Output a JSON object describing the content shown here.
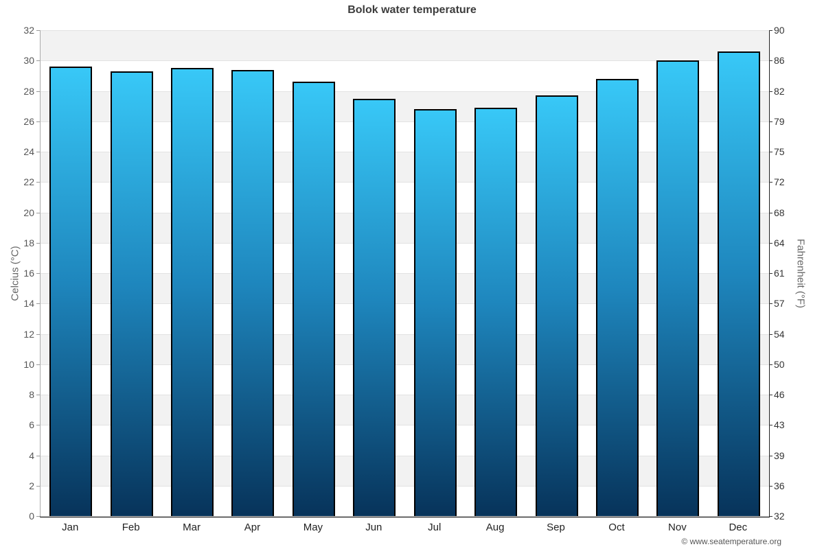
{
  "chart_data": {
    "type": "bar",
    "title": "Bolok water temperature",
    "categories": [
      "Jan",
      "Feb",
      "Mar",
      "Apr",
      "May",
      "Jun",
      "Jul",
      "Aug",
      "Sep",
      "Oct",
      "Nov",
      "Dec"
    ],
    "values": [
      29.6,
      29.3,
      29.5,
      29.4,
      28.6,
      27.5,
      26.8,
      26.9,
      27.7,
      28.8,
      30.0,
      30.6
    ],
    "unit": "°C",
    "ylabel_left": "Celcius (°C)",
    "ylabel_right": "Fahrenheit (°F)",
    "ylim_left": [
      0,
      32
    ],
    "yticks_left": [
      32,
      30,
      28,
      26,
      24,
      22,
      20,
      18,
      16,
      14,
      12,
      10,
      8,
      6,
      4,
      2,
      0
    ],
    "yticks_right_labels": [
      "90",
      "86",
      "82",
      "79",
      "75",
      "72",
      "68",
      "64",
      "61",
      "57",
      "54",
      "50",
      "46",
      "43",
      "39",
      "36",
      "32"
    ],
    "legend": "none",
    "grid": "horizontal-bands",
    "band_colors": [
      "#f2f2f2",
      "#ffffff"
    ],
    "bar_gradient_top": "#38c8f7",
    "bar_gradient_mid": "#1e86bd",
    "bar_gradient_bottom": "#07335a",
    "bar_border_color": "#000000"
  },
  "footer": {
    "copyright": "© www.seatemperature.org"
  }
}
